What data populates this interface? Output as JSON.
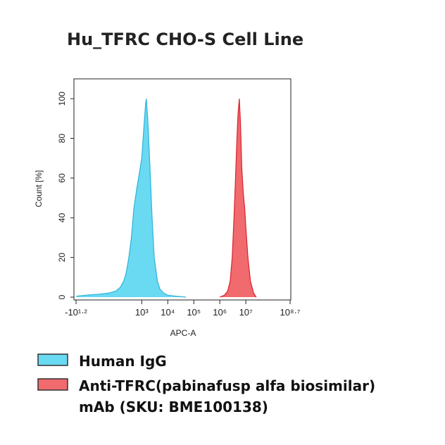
{
  "chart_data": {
    "type": "area",
    "title": "Hu_TFRC CHO-S Cell Line",
    "x_label": "APC-A",
    "y_label": "Count [%]",
    "xscale": "biexponential",
    "xlim": [
      -15.85,
      501187234
    ],
    "xticks": [
      {
        "value": -15.85,
        "label": "-10¹·²"
      },
      {
        "value": 1000,
        "label": "10³"
      },
      {
        "value": 10000,
        "label": "10⁴"
      },
      {
        "value": 100000,
        "label": "10⁵"
      },
      {
        "value": 1000000,
        "label": "10⁶"
      },
      {
        "value": 10000000,
        "label": "10⁷"
      },
      {
        "value": 501187234,
        "label": "10⁸·⁷"
      }
    ],
    "ylim": [
      0,
      110
    ],
    "yticks": [
      0,
      20,
      40,
      60,
      80,
      100
    ],
    "series": [
      {
        "name": "Human IgG",
        "color": "#6ad9f2",
        "edge_color": "#2fb3d8",
        "x": [
          -15,
          0,
          20,
          50,
          100,
          150,
          200,
          250,
          320,
          400,
          500,
          650,
          800,
          1000,
          1200,
          1400,
          1500,
          1700,
          2000,
          2500,
          3000,
          4000,
          5000,
          7000,
          10000,
          20000,
          50000
        ],
        "values": [
          0.5,
          1,
          1.5,
          2,
          3,
          5,
          8,
          12,
          20,
          30,
          45,
          55,
          62,
          70,
          85,
          97,
          100,
          90,
          70,
          40,
          20,
          8,
          4,
          2,
          1,
          0.5,
          0
        ]
      },
      {
        "name": "Anti-TFRC(pabinafusp alfa biosimilar) mAb (SKU: BME100138)",
        "color": "#f06a6e",
        "edge_color": "#d8232c",
        "x": [
          1000000,
          1500000,
          2000000,
          2500000,
          3000000,
          3500000,
          4000000,
          4500000,
          5000000,
          5600000,
          6200000,
          7000000,
          8000000,
          9000000,
          10000000,
          12000000,
          15000000,
          20000000,
          25000000
        ],
        "values": [
          0,
          1,
          3,
          8,
          20,
          40,
          60,
          78,
          92,
          100,
          88,
          65,
          52,
          45,
          35,
          20,
          8,
          2,
          0
        ]
      }
    ]
  }
}
